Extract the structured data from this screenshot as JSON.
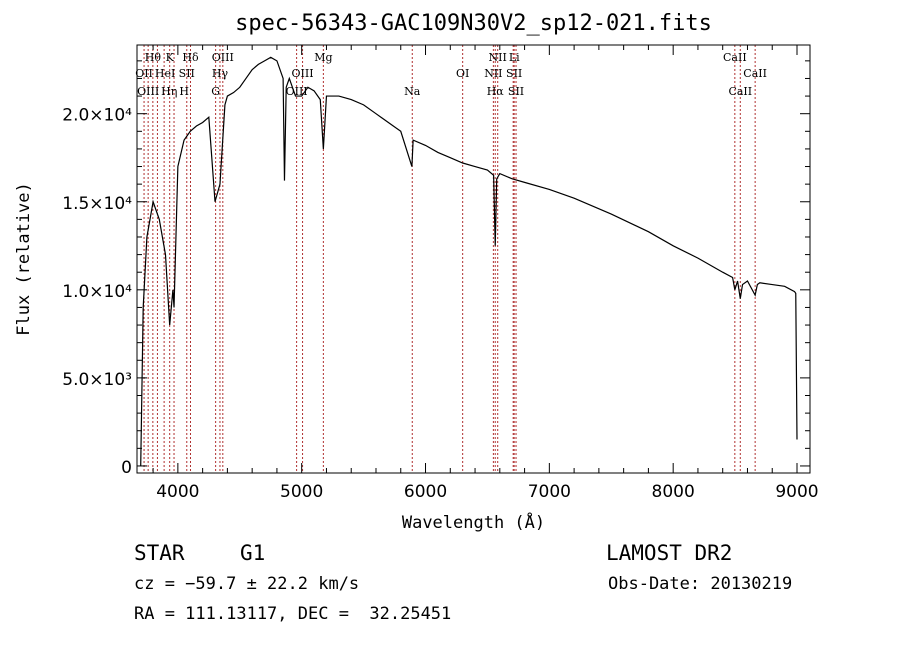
{
  "chart_data": {
    "type": "line",
    "title": "spec-56343-GAC109N30V2_sp12-021.fits",
    "xlabel": "Wavelength (Å)",
    "ylabel": "Flux (relative)",
    "xlim": [
      3670,
      9105
    ],
    "ylim": [
      -400,
      23900
    ],
    "x_ticks": [
      4000,
      5000,
      6000,
      7000,
      8000,
      9000
    ],
    "x_tick_labels": [
      "4000",
      "5000",
      "6000",
      "7000",
      "8000",
      "9000"
    ],
    "y_ticks": [
      0,
      5000,
      10000,
      15000,
      20000
    ],
    "y_tick_labels": [
      "0",
      "5.0×10³",
      "1.0×10⁴",
      "1.5×10⁴",
      "2.0×10⁴"
    ],
    "grid": false,
    "series": [
      {
        "name": "flux",
        "x": [
          3700,
          3720,
          3750,
          3800,
          3850,
          3900,
          3934,
          3960,
          3969,
          4000,
          4050,
          4100,
          4150,
          4200,
          4250,
          4300,
          4340,
          4380,
          4400,
          4450,
          4500,
          4550,
          4600,
          4650,
          4700,
          4750,
          4800,
          4850,
          4861,
          4875,
          4900,
          4950,
          5000,
          5050,
          5100,
          5150,
          5175,
          5200,
          5300,
          5400,
          5500,
          5600,
          5700,
          5800,
          5890,
          5900,
          6000,
          6100,
          6200,
          6300,
          6400,
          6500,
          6550,
          6563,
          6575,
          6600,
          6700,
          6800,
          7000,
          7200,
          7500,
          7800,
          8000,
          8200,
          8400,
          8480,
          8498,
          8520,
          8542,
          8560,
          8600,
          8662,
          8680,
          8700,
          8800,
          8900,
          8980,
          8990,
          9000
        ],
        "y": [
          0,
          9000,
          13000,
          15000,
          14000,
          12000,
          8000,
          10000,
          9000,
          17000,
          18500,
          19000,
          19300,
          19500,
          19800,
          15000,
          16000,
          20500,
          21000,
          21200,
          21500,
          22000,
          22500,
          22800,
          23000,
          23200,
          23000,
          22000,
          16200,
          21500,
          22000,
          21000,
          21000,
          21500,
          21300,
          20800,
          18000,
          21000,
          21000,
          20800,
          20500,
          20000,
          19500,
          19000,
          17000,
          18500,
          18200,
          17800,
          17500,
          17200,
          17000,
          16800,
          16500,
          12500,
          16300,
          16600,
          16300,
          16100,
          15700,
          15200,
          14300,
          13300,
          12500,
          11800,
          11000,
          10700,
          10000,
          10500,
          9500,
          10300,
          10500,
          9700,
          10300,
          10400,
          10300,
          10200,
          9900,
          9800,
          1500
        ]
      }
    ],
    "line_markers": [
      {
        "label": "OII",
        "wavelength": 3727,
        "row": 2
      },
      {
        "label": "Hθ",
        "wavelength": 3798,
        "row": 1
      },
      {
        "label": "OIII",
        "wavelength": 3760,
        "row": 3
      },
      {
        "label": "Hη",
        "wavelength": 3835,
        "row": 3
      },
      {
        "label": "HeI",
        "wavelength": 3889,
        "row": 2
      },
      {
        "label": "K",
        "wavelength": 3934,
        "row": 1
      },
      {
        "label": "H",
        "wavelength": 3969,
        "row": 3
      },
      {
        "label": "SII",
        "wavelength": 4072,
        "row": 2
      },
      {
        "label": "Hδ",
        "wavelength": 4102,
        "row": 1
      },
      {
        "label": "G",
        "wavelength": 4305,
        "row": 3
      },
      {
        "label": "Hγ",
        "wavelength": 4340,
        "row": 2
      },
      {
        "label": "OIII",
        "wavelength": 4363,
        "row": 1
      },
      {
        "label": "OIII",
        "wavelength": 4959,
        "row": 3
      },
      {
        "label": "OIII",
        "wavelength": 5007,
        "row": 2
      },
      {
        "label": "Mg",
        "wavelength": 5175,
        "row": 1
      },
      {
        "label": "Na",
        "wavelength": 5893,
        "row": 3
      },
      {
        "label": "OI",
        "wavelength": 6300,
        "row": 2
      },
      {
        "label": "NII",
        "wavelength": 6548,
        "row": 2
      },
      {
        "label": "Hα",
        "wavelength": 6563,
        "row": 3
      },
      {
        "label": "NII",
        "wavelength": 6583,
        "row": 1
      },
      {
        "label": "Li",
        "wavelength": 6708,
        "row": 1
      },
      {
        "label": "SII",
        "wavelength": 6716,
        "row": 2
      },
      {
        "label": "SII",
        "wavelength": 6731,
        "row": 3
      },
      {
        "label": "CaII",
        "wavelength": 8498,
        "row": 1
      },
      {
        "label": "CaII",
        "wavelength": 8542,
        "row": 3
      },
      {
        "label": "CaII",
        "wavelength": 8662,
        "row": 2
      }
    ],
    "marker_color": "#b03030",
    "line_color": "#000000"
  },
  "info": {
    "class": "STAR",
    "subclass": "G1",
    "survey": "LAMOST DR2",
    "cz": "cz = −59.7 ± 22.2 km/s",
    "obs_date": "Obs-Date: 20130219",
    "coords": "RA = 111.13117, DEC =  32.25451"
  }
}
